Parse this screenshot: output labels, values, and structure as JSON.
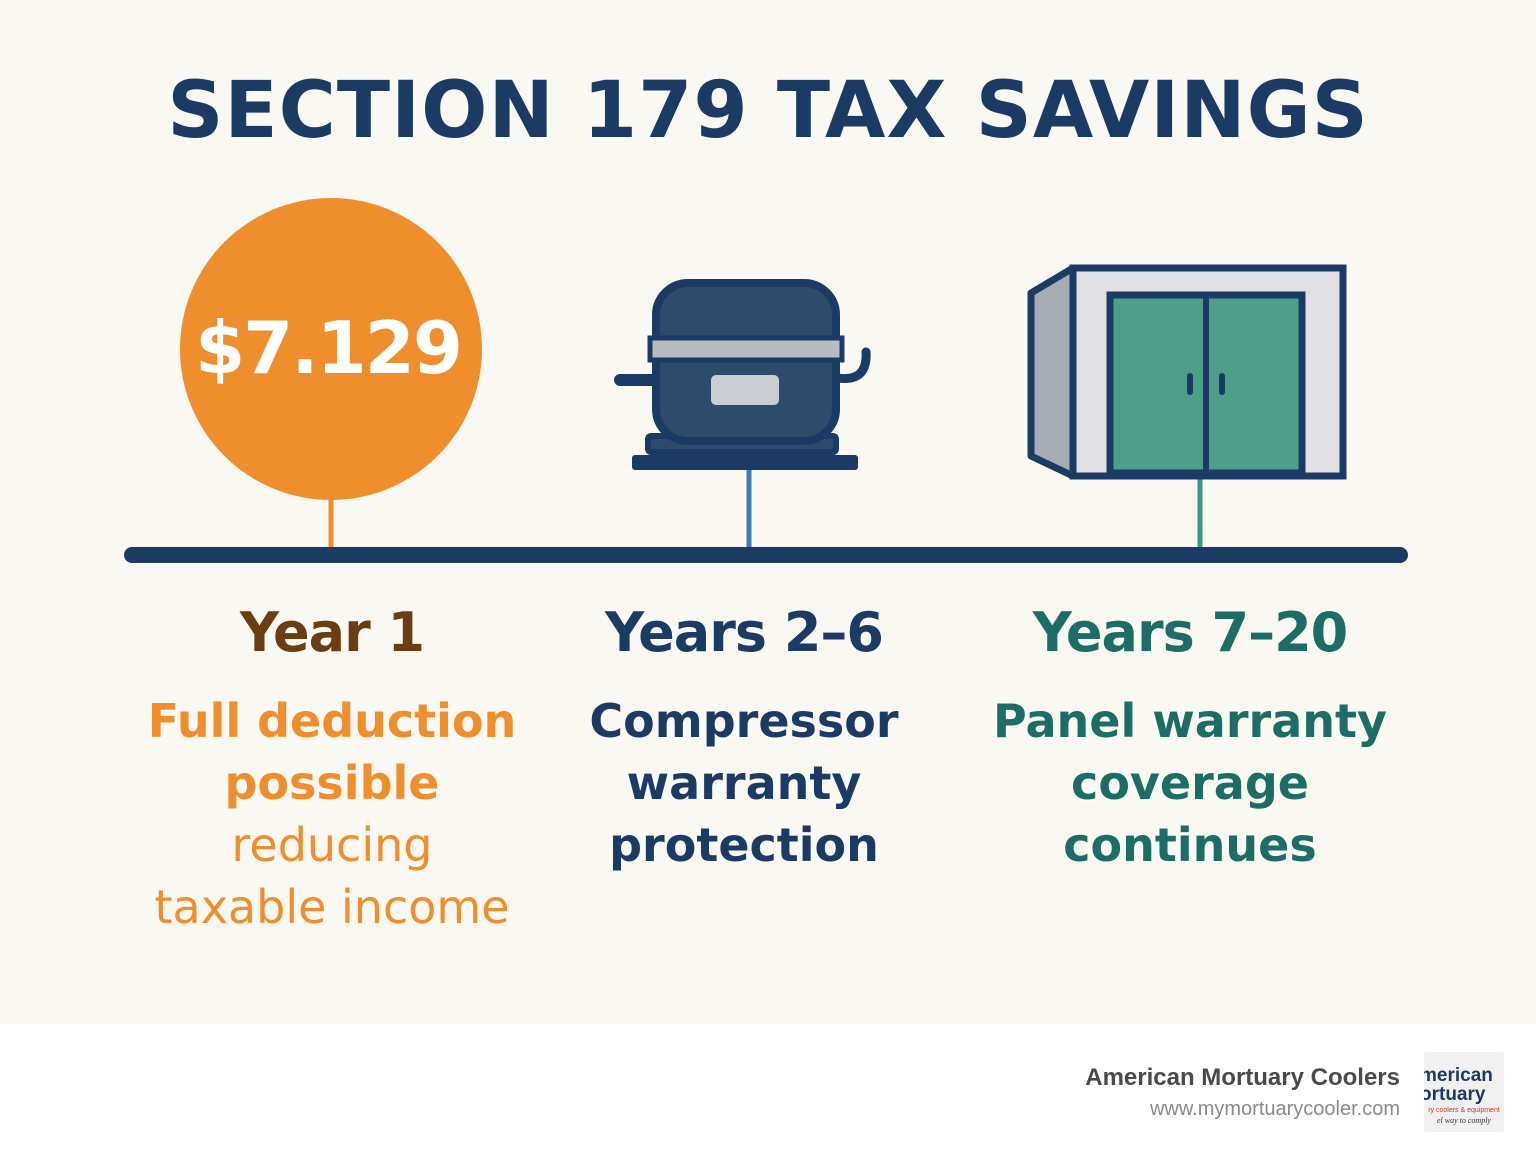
{
  "title": "SECTION 179 TAX SAVINGS",
  "amount": "$7.129",
  "columns": [
    {
      "heading": "Year 1",
      "body_strong_1": "Full deduction",
      "body_strong_2": "possible",
      "body_light_1": "reducing",
      "body_light_2": "taxable income",
      "icon": "money-circle-icon"
    },
    {
      "heading": "Years 2–6",
      "body_strong_1": "Compressor",
      "body_strong_2": "warranty",
      "body_strong_3": "protection",
      "icon": "compressor-icon"
    },
    {
      "heading": "Years 7–20",
      "body_strong_1": "Panel warranty",
      "body_strong_2": "coverage",
      "body_strong_3": "continues",
      "icon": "cooler-panel-icon"
    }
  ],
  "footer": {
    "brand_name": "American Mortuary Coolers",
    "brand_url": "www.mymortuarycooler.com",
    "logo_line_1": "merican",
    "logo_line_2": "ortuary",
    "logo_line_3": "ry coolers & equipment",
    "logo_line_4": "el way to comply"
  },
  "colors": {
    "navy": "#1b3a64",
    "orange": "#ee8e2c",
    "brown": "#6a3d12",
    "teal": "#1c6d66",
    "door_green": "#4e9e8a",
    "background": "#faf8f3"
  }
}
